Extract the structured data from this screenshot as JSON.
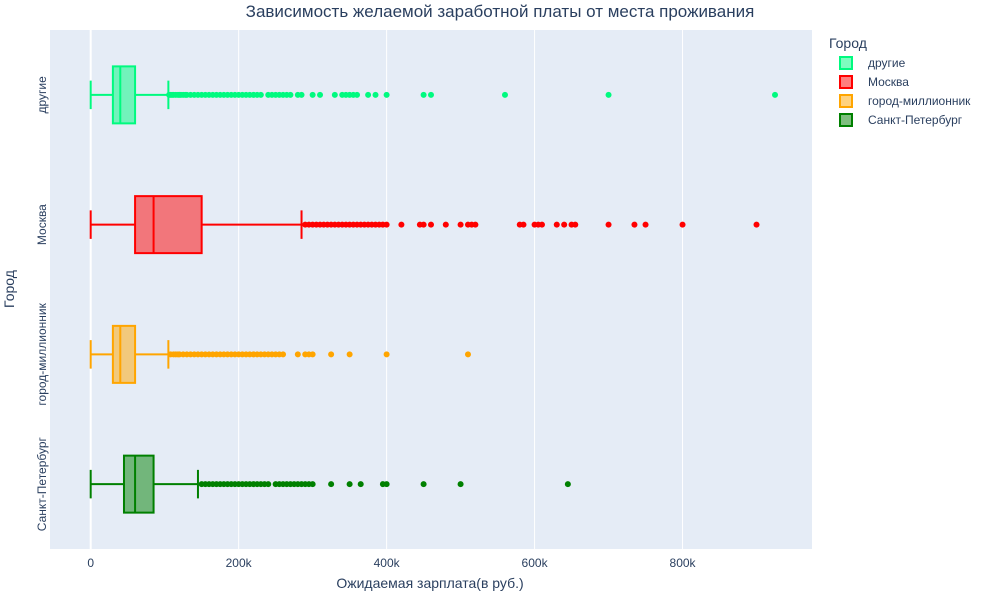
{
  "chart_data": {
    "type": "box",
    "orientation": "horizontal",
    "title": "Зависимость желаемой заработной платы от места проживания",
    "xlabel": "Ожидаемая зарплата(в руб.)",
    "ylabel": "Город",
    "xlim": [
      -55000,
      975000
    ],
    "x_ticks": [
      0,
      200000,
      400000,
      600000,
      800000
    ],
    "x_tick_labels": [
      "0",
      "200k",
      "400k",
      "600k",
      "800k"
    ],
    "grid": true,
    "legend": {
      "title": "Город",
      "placement": "top-right"
    },
    "categories": [
      "другие",
      "Москва",
      "город-миллионник",
      "Санкт-Петербург"
    ],
    "series": [
      {
        "name": "другие",
        "color": "#00fa7f",
        "box": {
          "min": 0,
          "q1": 30000,
          "median": 40000,
          "q3": 60000,
          "upper_fence": 105000
        },
        "outliers": [
          106000,
          108000,
          110000,
          112000,
          115000,
          118000,
          120000,
          122000,
          125000,
          128000,
          130000,
          135000,
          140000,
          145000,
          150000,
          155000,
          160000,
          165000,
          170000,
          175000,
          180000,
          185000,
          190000,
          195000,
          200000,
          205000,
          210000,
          215000,
          220000,
          225000,
          230000,
          240000,
          245000,
          250000,
          255000,
          260000,
          265000,
          270000,
          280000,
          285000,
          300000,
          310000,
          330000,
          340000,
          345000,
          350000,
          355000,
          360000,
          375000,
          385000,
          400000,
          450000,
          460000,
          560000,
          700000,
          925000
        ]
      },
      {
        "name": "Москва",
        "color": "#ff0000",
        "box": {
          "min": 0,
          "q1": 60000,
          "median": 85000,
          "q3": 150000,
          "upper_fence": 285000
        },
        "outliers": [
          290000,
          295000,
          300000,
          305000,
          310000,
          315000,
          320000,
          325000,
          330000,
          335000,
          340000,
          345000,
          350000,
          355000,
          360000,
          365000,
          370000,
          375000,
          380000,
          385000,
          390000,
          395000,
          400000,
          420000,
          445000,
          450000,
          460000,
          480000,
          500000,
          510000,
          515000,
          520000,
          580000,
          585000,
          600000,
          605000,
          610000,
          630000,
          640000,
          650000,
          655000,
          700000,
          735000,
          750000,
          800000,
          900000
        ]
      },
      {
        "name": "город-миллионник",
        "color": "#ffa500",
        "box": {
          "min": 0,
          "q1": 30000,
          "median": 40000,
          "q3": 60000,
          "upper_fence": 105000
        },
        "outliers": [
          108000,
          112000,
          115000,
          118000,
          120000,
          125000,
          130000,
          135000,
          140000,
          145000,
          150000,
          155000,
          160000,
          165000,
          170000,
          175000,
          180000,
          185000,
          190000,
          195000,
          200000,
          205000,
          210000,
          215000,
          220000,
          225000,
          230000,
          235000,
          240000,
          245000,
          250000,
          255000,
          260000,
          280000,
          290000,
          295000,
          300000,
          325000,
          350000,
          400000,
          510000
        ]
      },
      {
        "name": "Санкт-Петербург",
        "color": "#008000",
        "box": {
          "min": 0,
          "q1": 45000,
          "median": 60000,
          "q3": 85000,
          "upper_fence": 145000
        },
        "outliers": [
          150000,
          155000,
          160000,
          165000,
          170000,
          175000,
          180000,
          185000,
          190000,
          195000,
          200000,
          205000,
          210000,
          215000,
          220000,
          225000,
          230000,
          235000,
          240000,
          250000,
          255000,
          260000,
          265000,
          270000,
          275000,
          280000,
          285000,
          290000,
          295000,
          300000,
          325000,
          350000,
          365000,
          395000,
          400000,
          450000,
          500000,
          645000
        ]
      }
    ]
  }
}
